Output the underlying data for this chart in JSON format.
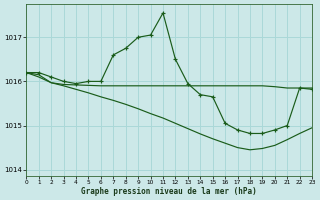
{
  "title": "Graphe pression niveau de la mer (hPa)",
  "bg_color": "#cce8e8",
  "grid_color": "#aad8d8",
  "line_color": "#1a5c1a",
  "xlim": [
    0,
    23
  ],
  "ylim": [
    1013.85,
    1017.75
  ],
  "yticks": [
    1014,
    1015,
    1016,
    1017
  ],
  "xticks": [
    0,
    1,
    2,
    3,
    4,
    5,
    6,
    7,
    8,
    9,
    10,
    11,
    12,
    13,
    14,
    15,
    16,
    17,
    18,
    19,
    20,
    21,
    22,
    23
  ],
  "s1_x": [
    0,
    1,
    2,
    3,
    4,
    5,
    6,
    7,
    8,
    9,
    10,
    11,
    12,
    13,
    14,
    15,
    16,
    17,
    18,
    19,
    20,
    21,
    22,
    23
  ],
  "s1_y": [
    1016.2,
    1016.2,
    1016.1,
    1016.0,
    1015.95,
    1016.0,
    1016.0,
    1016.6,
    1016.75,
    1017.0,
    1017.05,
    1017.55,
    1016.5,
    1015.95,
    1015.7,
    1015.65,
    1015.05,
    1014.9,
    1014.82,
    1014.82,
    1014.9,
    1015.0,
    1015.85,
    1015.82
  ],
  "s2_x": [
    0,
    1,
    2,
    3,
    4,
    5,
    6,
    7,
    8,
    9,
    10,
    11,
    12,
    13,
    14,
    15,
    16,
    17,
    18,
    19,
    20,
    21,
    22,
    23
  ],
  "s2_y": [
    1016.2,
    1016.15,
    1015.97,
    1015.93,
    1015.92,
    1015.91,
    1015.9,
    1015.9,
    1015.9,
    1015.9,
    1015.9,
    1015.9,
    1015.9,
    1015.9,
    1015.9,
    1015.9,
    1015.9,
    1015.9,
    1015.9,
    1015.9,
    1015.88,
    1015.85,
    1015.85,
    1015.85
  ],
  "s3_x": [
    0,
    1,
    2,
    3,
    4,
    5,
    6,
    7,
    8,
    9,
    10,
    11,
    12,
    13,
    14,
    15,
    16,
    17,
    18,
    19,
    20,
    21,
    22,
    23
  ],
  "s3_y": [
    1016.2,
    1016.1,
    1015.97,
    1015.9,
    1015.82,
    1015.74,
    1015.65,
    1015.57,
    1015.48,
    1015.38,
    1015.27,
    1015.17,
    1015.05,
    1014.93,
    1014.81,
    1014.7,
    1014.6,
    1014.5,
    1014.45,
    1014.48,
    1014.55,
    1014.68,
    1014.82,
    1014.95
  ]
}
